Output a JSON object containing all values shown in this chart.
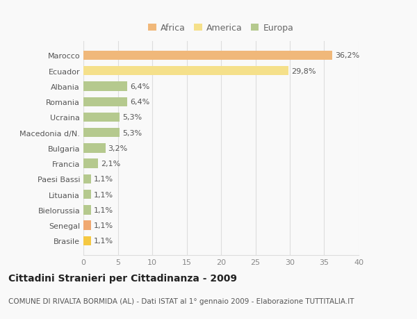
{
  "categories": [
    "Brasile",
    "Senegal",
    "Bielorussia",
    "Lituania",
    "Paesi Bassi",
    "Francia",
    "Bulgaria",
    "Macedonia d/N.",
    "Ucraina",
    "Romania",
    "Albania",
    "Ecuador",
    "Marocco"
  ],
  "values": [
    1.1,
    1.1,
    1.1,
    1.1,
    1.1,
    2.1,
    3.2,
    5.3,
    5.3,
    6.4,
    6.4,
    29.8,
    36.2
  ],
  "labels": [
    "1,1%",
    "1,1%",
    "1,1%",
    "1,1%",
    "1,1%",
    "2,1%",
    "3,2%",
    "5,3%",
    "5,3%",
    "6,4%",
    "6,4%",
    "29,8%",
    "36,2%"
  ],
  "colors": [
    "#f5c842",
    "#f0a870",
    "#b5c98e",
    "#b5c98e",
    "#b5c98e",
    "#b5c98e",
    "#b5c98e",
    "#b5c98e",
    "#b5c98e",
    "#b5c98e",
    "#b5c98e",
    "#f5e08a",
    "#f0b87a"
  ],
  "africa_color": "#f0b87a",
  "america_color": "#f5e08a",
  "europa_color": "#b5c98e",
  "xlim": [
    0,
    40
  ],
  "xticks": [
    0,
    5,
    10,
    15,
    20,
    25,
    30,
    35,
    40
  ],
  "title": "Cittadini Stranieri per Cittadinanza - 2009",
  "subtitle": "COMUNE DI RIVALTA BORMIDA (AL) - Dati ISTAT al 1° gennaio 2009 - Elaborazione TUTTITALIA.IT",
  "background_color": "#f9f9f9",
  "grid_color": "#dddddd",
  "bar_height": 0.6,
  "label_fontsize": 8,
  "tick_fontsize": 8,
  "title_fontsize": 10,
  "subtitle_fontsize": 7.5
}
